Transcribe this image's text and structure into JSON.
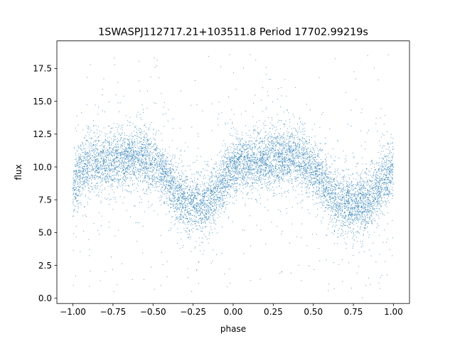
{
  "chart_data": {
    "type": "scatter",
    "title": "1SWASPJ112717.21+103511.8 Period 17702.99219s",
    "xlabel": "phase",
    "ylabel": "flux",
    "xlim": [
      -1.1,
      1.1
    ],
    "ylim": [
      -0.4,
      19.6
    ],
    "x_ticks": [
      -1.0,
      -0.75,
      -0.5,
      -0.25,
      0.0,
      0.25,
      0.5,
      0.75,
      1.0
    ],
    "x_tick_labels": [
      "−1.00",
      "−0.75",
      "−0.50",
      "−0.25",
      "0.00",
      "0.25",
      "0.50",
      "0.75",
      "1.00"
    ],
    "y_ticks": [
      0.0,
      2.5,
      5.0,
      7.5,
      10.0,
      12.5,
      15.0,
      17.5
    ],
    "y_tick_labels": [
      "0.0",
      "2.5",
      "5.0",
      "7.5",
      "10.0",
      "12.5",
      "15.0",
      "17.5"
    ],
    "grid": false,
    "legend": "none",
    "marker_color": "#1f77b4",
    "phase_range": [
      -1.0,
      1.0
    ],
    "point_density": "dense",
    "series": [
      {
        "points": [
          [
            -1.0,
            8.3
          ],
          [
            -0.95,
            9.8
          ],
          [
            -0.9,
            10.2
          ],
          [
            -0.85,
            10.3
          ],
          [
            -0.8,
            10.4
          ],
          [
            -0.75,
            10.5
          ],
          [
            -0.7,
            10.7
          ],
          [
            -0.65,
            10.8
          ],
          [
            -0.6,
            10.8
          ],
          [
            -0.55,
            10.5
          ],
          [
            -0.5,
            10.2
          ],
          [
            -0.45,
            9.8
          ],
          [
            -0.4,
            9.0
          ],
          [
            -0.35,
            8.0
          ],
          [
            -0.3,
            7.4
          ],
          [
            -0.25,
            7.2
          ],
          [
            -0.2,
            7.1
          ],
          [
            -0.15,
            7.3
          ],
          [
            -0.1,
            8.2
          ],
          [
            -0.05,
            9.3
          ],
          [
            0.0,
            10.1
          ],
          [
            0.05,
            10.3
          ],
          [
            0.1,
            10.3
          ],
          [
            0.15,
            10.4
          ],
          [
            0.2,
            10.5
          ],
          [
            0.25,
            10.7
          ],
          [
            0.3,
            10.8
          ],
          [
            0.35,
            10.8
          ],
          [
            0.4,
            10.6
          ],
          [
            0.45,
            10.3
          ],
          [
            0.5,
            9.8
          ],
          [
            0.55,
            9.0
          ],
          [
            0.6,
            8.0
          ],
          [
            0.65,
            7.4
          ],
          [
            0.7,
            7.2
          ],
          [
            0.75,
            7.1
          ],
          [
            0.8,
            7.2
          ],
          [
            0.85,
            7.4
          ],
          [
            0.9,
            8.2
          ],
          [
            0.95,
            9.0
          ],
          [
            1.0,
            9.6
          ]
        ]
      }
    ]
  }
}
